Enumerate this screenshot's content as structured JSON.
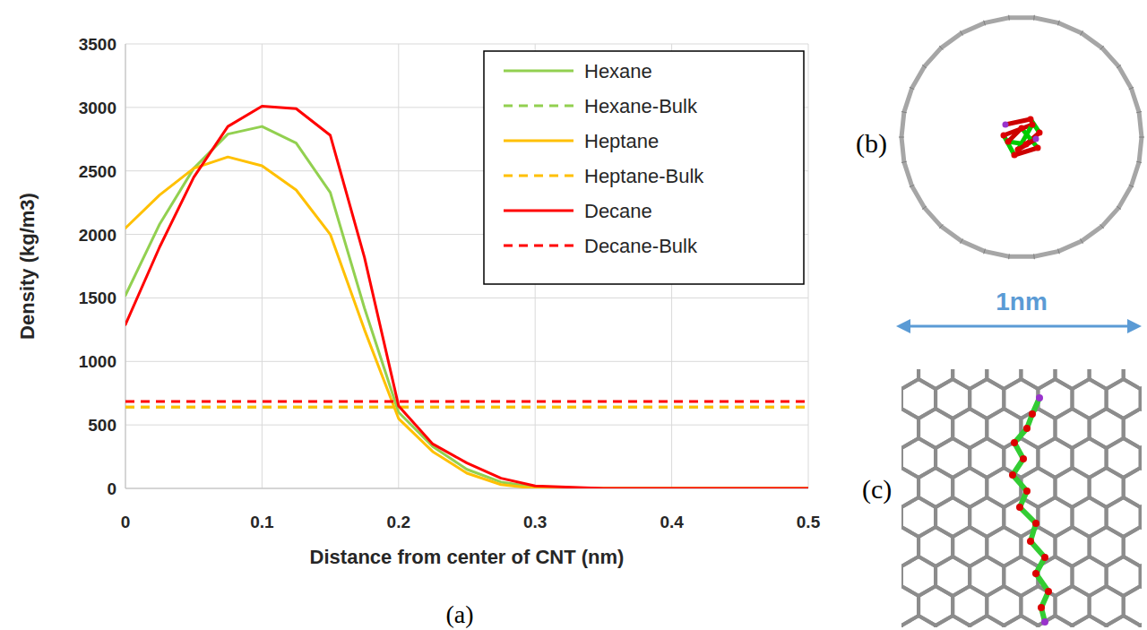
{
  "chart_data": {
    "type": "line",
    "x_label": "Distance from center of CNT (nm)",
    "y_label": "Density (kg/m3)",
    "panel_label": "(a)",
    "x": [
      0,
      0.025,
      0.05,
      0.075,
      0.1,
      0.125,
      0.15,
      0.175,
      0.2,
      0.225,
      0.25,
      0.275,
      0.3,
      0.35,
      0.4,
      0.45,
      0.5
    ],
    "series": [
      {
        "name": "Hexane",
        "color": "#92d050",
        "line_style": "solid",
        "values": [
          1520,
          2080,
          2520,
          2790,
          2850,
          2720,
          2330,
          1420,
          600,
          330,
          150,
          50,
          10,
          0,
          0,
          0,
          0
        ]
      },
      {
        "name": "Hexane-Bulk",
        "color": "#92d050",
        "line_style": "dashed",
        "values": [
          640,
          640,
          640,
          640,
          640,
          640,
          640,
          640,
          640,
          640,
          640,
          640,
          640,
          640,
          640,
          640,
          640
        ]
      },
      {
        "name": "Heptane",
        "color": "#ffc000",
        "line_style": "solid",
        "values": [
          2050,
          2310,
          2520,
          2610,
          2540,
          2350,
          2000,
          1250,
          550,
          290,
          120,
          30,
          0,
          0,
          0,
          0,
          0
        ]
      },
      {
        "name": "Heptane-Bulk",
        "color": "#ffc000",
        "line_style": "dashed",
        "values": [
          640,
          640,
          640,
          640,
          640,
          640,
          640,
          640,
          640,
          640,
          640,
          640,
          640,
          640,
          640,
          640,
          640
        ]
      },
      {
        "name": "Decane",
        "color": "#ff0000",
        "line_style": "solid",
        "values": [
          1290,
          1900,
          2450,
          2850,
          3010,
          2990,
          2780,
          1820,
          650,
          350,
          200,
          80,
          20,
          0,
          0,
          0,
          0
        ]
      },
      {
        "name": "Decane-Bulk",
        "color": "#ff0000",
        "line_style": "dashed",
        "values": [
          685,
          685,
          685,
          685,
          685,
          685,
          685,
          685,
          685,
          685,
          685,
          685,
          685,
          685,
          685,
          685,
          685
        ]
      }
    ],
    "xlim": [
      0,
      0.5
    ],
    "xticks": [
      0,
      0.1,
      0.2,
      0.3,
      0.4,
      0.5
    ],
    "ylim": [
      0,
      3500
    ],
    "yticks": [
      0,
      500,
      1000,
      1500,
      2000,
      2500,
      3000,
      3500
    ],
    "grid": true,
    "legend": "upper right"
  },
  "panels": {
    "b_label": "(b)",
    "c_label": "(c)",
    "scale_label": "1nm"
  }
}
